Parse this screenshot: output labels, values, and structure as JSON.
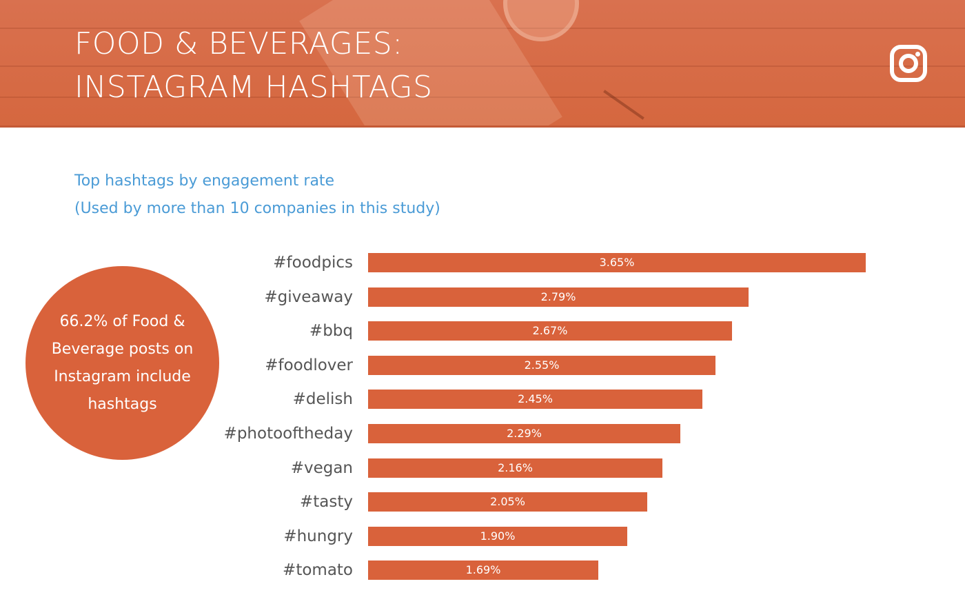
{
  "header": {
    "title_line1": "FOOD & BEVERAGES:",
    "title_line2": "INSTAGRAM HASHTAGS",
    "icon": "instagram-icon",
    "background_color": "#d9714f"
  },
  "subtitle": {
    "line1": "Top hashtags by engagement rate",
    "line2": "(Used by more than 10 companies in this study)",
    "color": "#4a9bd6"
  },
  "callout": {
    "text": "66.2% of Food & Beverage posts on Instagram include hashtags",
    "color": "#d9623b"
  },
  "chart_data": {
    "type": "bar",
    "orientation": "horizontal",
    "categories": [
      "#foodpics",
      "#giveaway",
      "#bbq",
      "#foodlover",
      "#delish",
      "#photooftheday",
      "#vegan",
      "#tasty",
      "#hungry",
      "#tomato"
    ],
    "values": [
      3.65,
      2.79,
      2.67,
      2.55,
      2.45,
      2.29,
      2.16,
      2.05,
      1.9,
      1.69
    ],
    "value_labels": [
      "3.65%",
      "2.79%",
      "2.67%",
      "2.55%",
      "2.45%",
      "2.29%",
      "2.16%",
      "2.05%",
      "1.90%",
      "1.69%"
    ],
    "bar_color": "#d9623b",
    "grid": false,
    "legend": "none"
  }
}
